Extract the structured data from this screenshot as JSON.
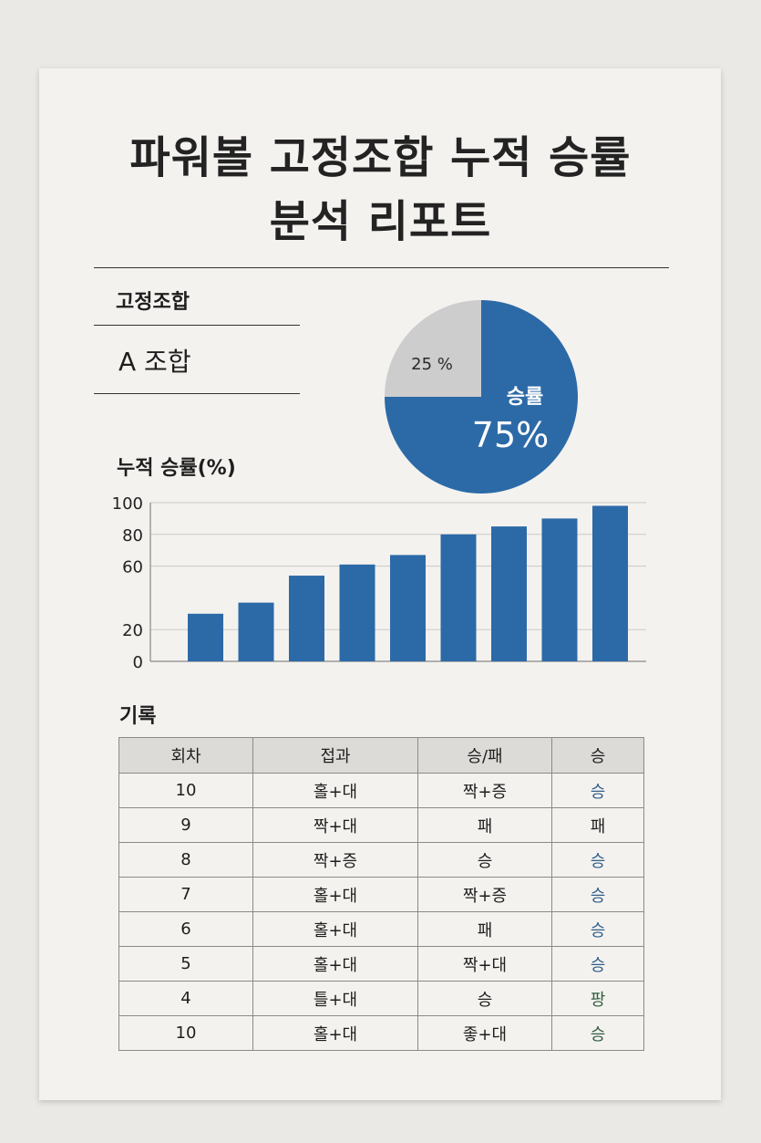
{
  "title_lines": [
    "파워볼 고정조합 누적 승률",
    "분석 리포트"
  ],
  "combination": {
    "label": "고정조합",
    "value": "A 조합"
  },
  "pie": {
    "win_label": "승률",
    "win_value": "75%",
    "lose_value": "25 %",
    "win_fraction": 0.75,
    "win_color": "#2c6aa7",
    "lose_color": "#cdcdcd"
  },
  "chart_data": {
    "type": "bar",
    "title": "누적 승률(%)",
    "categories": [
      "",
      "",
      "",
      "",
      "",
      "",
      "",
      "",
      ""
    ],
    "values": [
      30,
      37,
      54,
      61,
      67,
      80,
      85,
      90,
      98
    ],
    "ylim": [
      0,
      100
    ],
    "yticks": [
      "100",
      "80",
      "60",
      "20",
      "0"
    ],
    "grid": true,
    "bar_color": "#2c6aa7"
  },
  "records": {
    "title": "기록",
    "headers": [
      "회차",
      "접과",
      "승/패",
      "승"
    ],
    "rows": [
      [
        "10",
        "홀+대",
        "짝+증",
        "승"
      ],
      [
        "9",
        "짝+대",
        "패",
        "패"
      ],
      [
        "8",
        "짝+증",
        "승",
        "승"
      ],
      [
        "7",
        "홀+대",
        "짝+증",
        "승"
      ],
      [
        "6",
        "홀+대",
        "패",
        "승"
      ],
      [
        "5",
        "홀+대",
        "짝+대",
        "승"
      ],
      [
        "4",
        "틀+대",
        "승",
        "팡"
      ],
      [
        "10",
        "홀+대",
        "좋+대",
        "승"
      ]
    ],
    "result_colors": [
      "#2f5f8a",
      "#222222",
      "#2f5f8a",
      "#2f5f8a",
      "#2f5f8a",
      "#2f5f8a",
      "#2f5e3e",
      "#2f5e3e"
    ]
  }
}
